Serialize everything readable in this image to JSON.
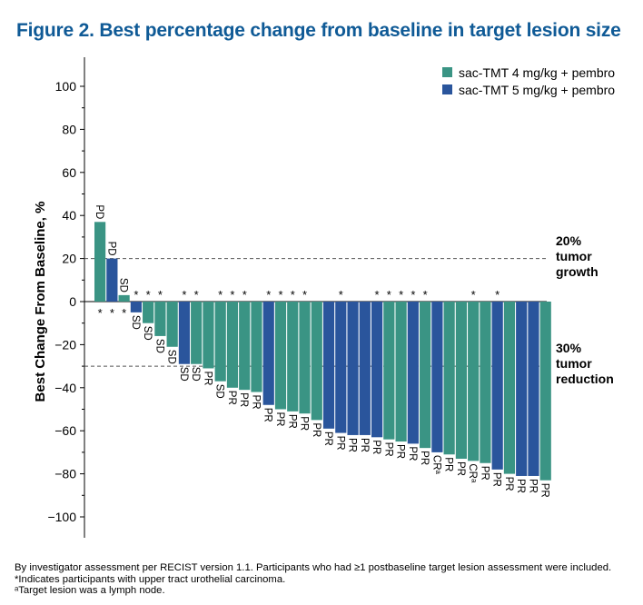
{
  "chart_data": {
    "type": "bar",
    "title": "Figure 2. Best percentage change from baseline in target lesion size",
    "ylabel": "Best Change From Baseline, %",
    "xlabel": "",
    "ylim": [
      -110,
      110
    ],
    "yticks": [
      100,
      80,
      60,
      40,
      20,
      0,
      -20,
      -40,
      -60,
      -80,
      -100
    ],
    "ytick_labels": [
      "100",
      "80",
      "60",
      "40",
      "20",
      "0",
      "−20",
      "−40",
      "−60",
      "−80",
      "−100"
    ],
    "series": [
      {
        "name": "sac-TMT 4 mg/kg + pembro",
        "color": "#3a9484"
      },
      {
        "name": "sac-TMT 5 mg/kg + pembro",
        "color": "#2a559c"
      }
    ],
    "bars": [
      {
        "value": 37,
        "series": 0,
        "label": "PD",
        "star": true
      },
      {
        "value": 20,
        "series": 1,
        "label": "PD",
        "star": true
      },
      {
        "value": 3,
        "series": 0,
        "label": "SD",
        "star": true
      },
      {
        "value": -5,
        "series": 1,
        "label": "SD",
        "star": true
      },
      {
        "value": -10,
        "series": 0,
        "label": "SD",
        "star": true
      },
      {
        "value": -16,
        "series": 0,
        "label": "SD",
        "star": true
      },
      {
        "value": -21,
        "series": 0,
        "label": "SD",
        "star": false
      },
      {
        "value": -29,
        "series": 1,
        "label": "SD",
        "star": true
      },
      {
        "value": -29,
        "series": 0,
        "label": "SD",
        "star": true
      },
      {
        "value": -31,
        "series": 0,
        "label": "PR",
        "star": false
      },
      {
        "value": -37,
        "series": 0,
        "label": "SD",
        "star": true
      },
      {
        "value": -40,
        "series": 0,
        "label": "PR",
        "star": true
      },
      {
        "value": -41,
        "series": 0,
        "label": "PR",
        "star": true
      },
      {
        "value": -42,
        "series": 0,
        "label": "PR",
        "star": false
      },
      {
        "value": -48,
        "series": 1,
        "label": "PR",
        "star": true
      },
      {
        "value": -50,
        "series": 0,
        "label": "PR",
        "star": true
      },
      {
        "value": -51,
        "series": 0,
        "label": "PR",
        "star": true
      },
      {
        "value": -52,
        "series": 0,
        "label": "PR",
        "star": true
      },
      {
        "value": -55,
        "series": 0,
        "label": "PR",
        "star": false
      },
      {
        "value": -59,
        "series": 1,
        "label": "PR",
        "star": false
      },
      {
        "value": -61,
        "series": 1,
        "label": "PR",
        "star": true
      },
      {
        "value": -62,
        "series": 1,
        "label": "PR",
        "star": false
      },
      {
        "value": -62,
        "series": 1,
        "label": "PR",
        "star": false
      },
      {
        "value": -63,
        "series": 1,
        "label": "PR",
        "star": true
      },
      {
        "value": -64,
        "series": 0,
        "label": "PR",
        "star": true
      },
      {
        "value": -65,
        "series": 0,
        "label": "PR",
        "star": true
      },
      {
        "value": -66,
        "series": 1,
        "label": "PR",
        "star": true
      },
      {
        "value": -68,
        "series": 0,
        "label": "PR",
        "star": true
      },
      {
        "value": -70,
        "series": 1,
        "label": "CRᵃ",
        "star": false
      },
      {
        "value": -71,
        "series": 0,
        "label": "PR",
        "star": false
      },
      {
        "value": -73,
        "series": 0,
        "label": "PR",
        "star": false
      },
      {
        "value": -74,
        "series": 0,
        "label": "CRᵃ",
        "star": true
      },
      {
        "value": -75,
        "series": 0,
        "label": "PR",
        "star": false
      },
      {
        "value": -78,
        "series": 1,
        "label": "PR",
        "star": true
      },
      {
        "value": -80,
        "series": 0,
        "label": "PR",
        "star": false
      },
      {
        "value": -81,
        "series": 1,
        "label": "PR",
        "star": false
      },
      {
        "value": -81,
        "series": 1,
        "label": "PR",
        "star": false
      },
      {
        "value": -83,
        "series": 0,
        "label": "PR",
        "star": false
      }
    ],
    "reference_lines": [
      {
        "value": 20,
        "label_lines": [
          "20%",
          "tumor",
          "growth"
        ]
      },
      {
        "value": -30,
        "label_lines": [
          "30%",
          "tumor",
          "reduction"
        ]
      }
    ],
    "star_symbol": "*",
    "legend_position": "top-right"
  },
  "footnotes": [
    "By investigator assessment per RECIST version 1.1. Participants who had ≥1 postbaseline target lesion assessment were included.",
    "*Indicates participants with upper tract urothelial carcinoma.",
    "ᵃTarget lesion was a lymph node."
  ]
}
